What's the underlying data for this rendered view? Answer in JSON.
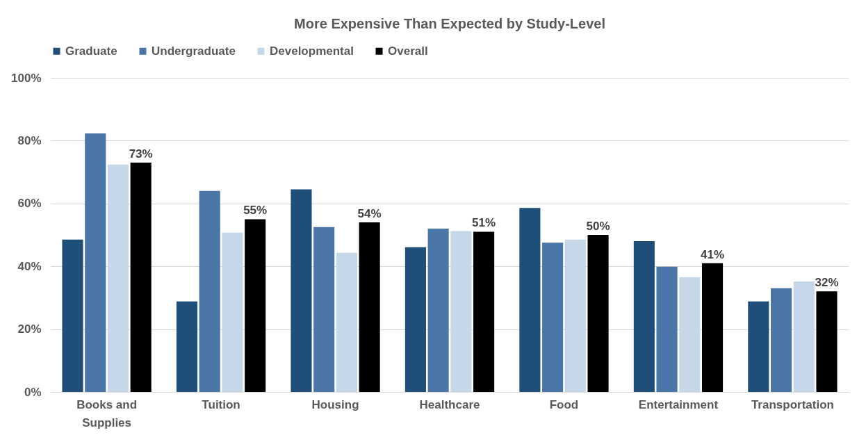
{
  "chart_data": {
    "type": "bar",
    "title": "More Expensive Than Expected by Study-Level",
    "categories": [
      "Books and Supplies",
      "Tuition",
      "Housing",
      "Healthcare",
      "Food",
      "Entertainment",
      "Transportation"
    ],
    "series": [
      {
        "name": "Graduate",
        "color": "#1f4e79",
        "values": [
          48.5,
          28.8,
          64.5,
          46.1,
          58.6,
          48.0,
          28.8
        ]
      },
      {
        "name": "Undergraduate",
        "color": "#4a76a8",
        "values": [
          82.3,
          64.0,
          52.5,
          52.0,
          47.5,
          39.9,
          33.0
        ]
      },
      {
        "name": "Developmental",
        "color": "#c5d7e8",
        "values": [
          72.4,
          50.7,
          44.3,
          51.2,
          48.5,
          36.5,
          35.2
        ]
      },
      {
        "name": "Overall",
        "color": "#000000",
        "values": [
          73,
          55,
          54,
          51,
          50,
          41,
          32
        ],
        "value_labels": [
          "73%",
          "55%",
          "54%",
          "51%",
          "50%",
          "41%",
          "32%"
        ]
      }
    ],
    "ylim": [
      0,
      100
    ],
    "yticks": [
      {
        "value": 0,
        "label": "0%"
      },
      {
        "value": 20,
        "label": "20%"
      },
      {
        "value": 40,
        "label": "40%"
      },
      {
        "value": 60,
        "label": "60%"
      },
      {
        "value": 80,
        "label": "80%"
      },
      {
        "value": 100,
        "label": "100%"
      }
    ],
    "grid": "y",
    "legend": "top"
  }
}
